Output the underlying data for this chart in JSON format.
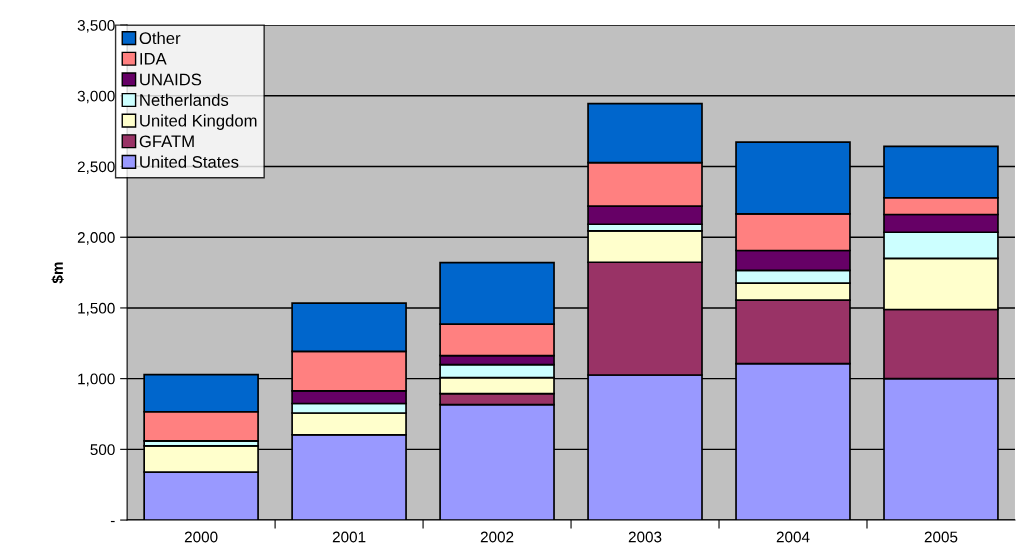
{
  "chart_data": {
    "type": "bar",
    "stacked": true,
    "ylabel": "$m",
    "categories": [
      "2000",
      "2001",
      "2002",
      "2003",
      "2004",
      "2005"
    ],
    "series": [
      {
        "name": "United States",
        "color": "#9999ff",
        "values": [
          340,
          603,
          816,
          1026,
          1106,
          1000
        ]
      },
      {
        "name": "GFATM",
        "color": "#993366",
        "values": [
          0,
          0,
          78,
          797,
          449,
          489
        ]
      },
      {
        "name": "United Kingdom",
        "color": "#ffffcc",
        "values": [
          185,
          154,
          113,
          222,
          121,
          362
        ]
      },
      {
        "name": "Netherlands",
        "color": "#ccffff",
        "values": [
          35,
          67,
          92,
          47,
          90,
          184
        ]
      },
      {
        "name": "UNAIDS",
        "color": "#660066",
        "values": [
          0,
          89,
          64,
          128,
          140,
          126
        ]
      },
      {
        "name": "IDA",
        "color": "#ff8080",
        "values": [
          206,
          280,
          222,
          307,
          259,
          118
        ]
      },
      {
        "name": "Other",
        "color": "#0066cc",
        "values": [
          262,
          341,
          435,
          418,
          507,
          364
        ]
      }
    ],
    "ylim": [
      0,
      3500
    ],
    "yticks": [
      {
        "value": 0,
        "label": "-"
      },
      {
        "value": 500,
        "label": "500"
      },
      {
        "value": 1000,
        "label": "1,000"
      },
      {
        "value": 1500,
        "label": "1,500"
      },
      {
        "value": 2000,
        "label": "2,000"
      },
      {
        "value": 2500,
        "label": "2,500"
      },
      {
        "value": 3000,
        "label": "3,000"
      },
      {
        "value": 3500,
        "label": "3,500"
      }
    ],
    "grid": "y",
    "legend": "top left"
  }
}
